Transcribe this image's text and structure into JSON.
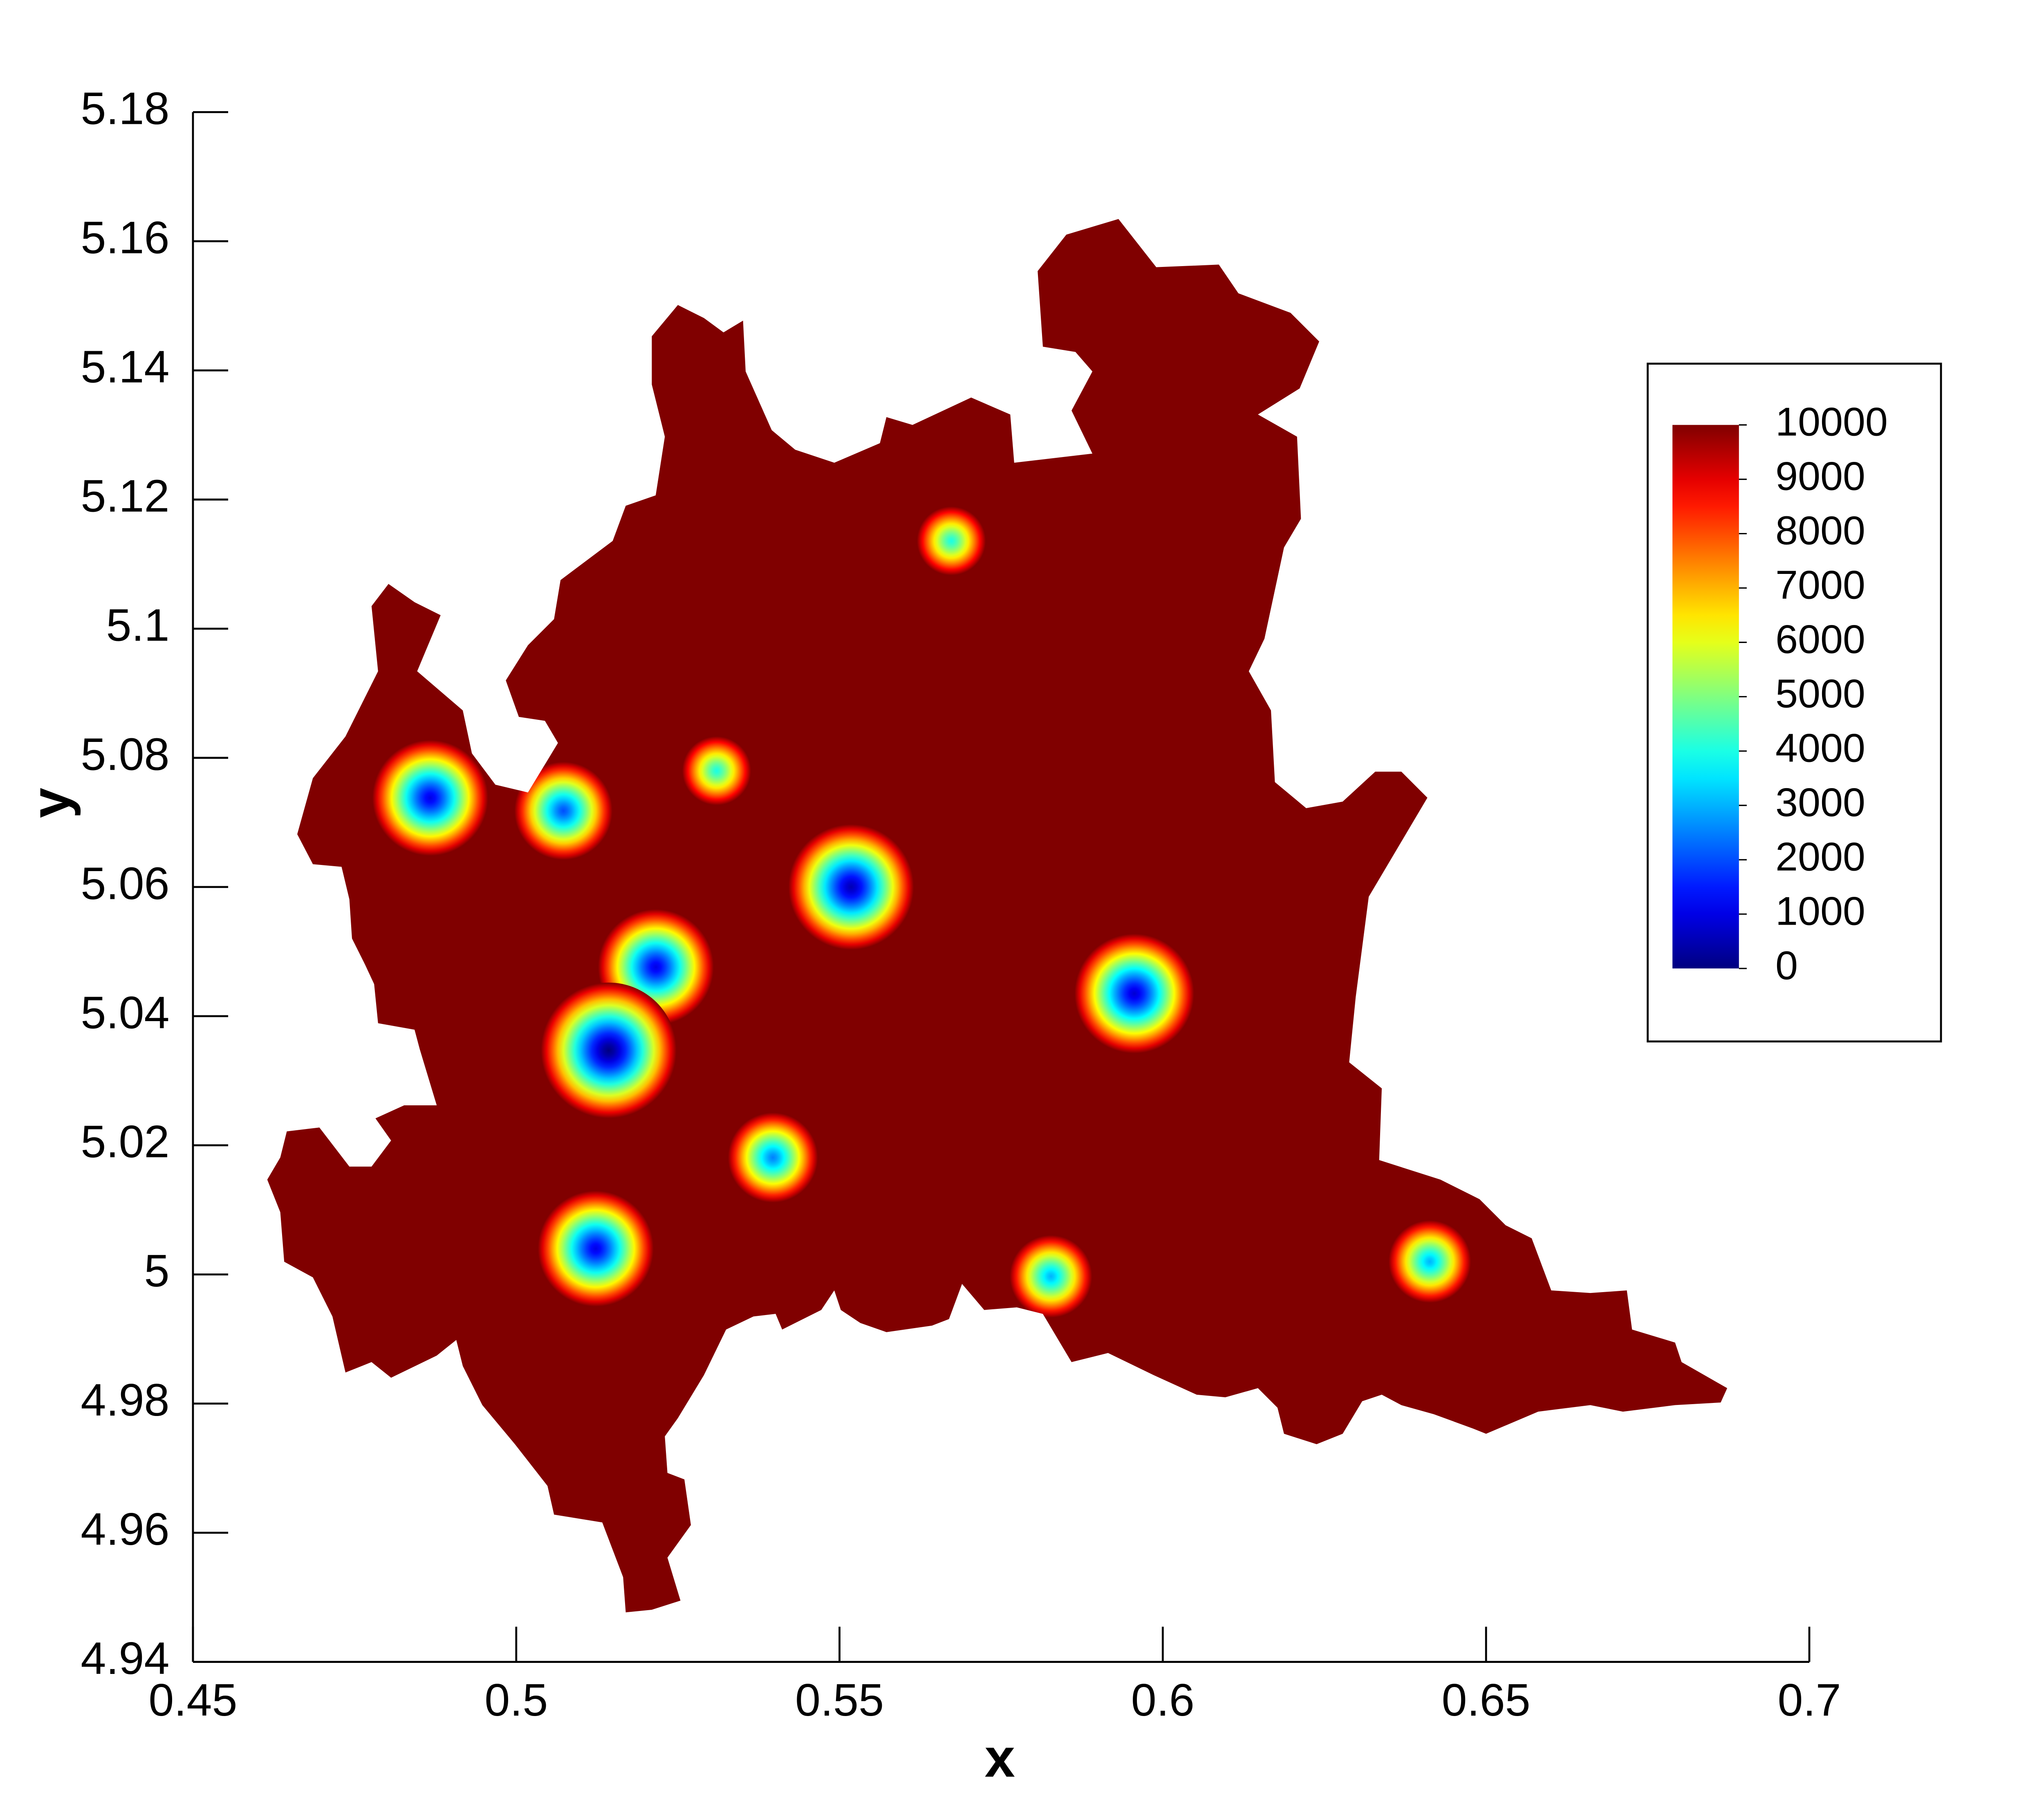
{
  "chart_data": {
    "type": "contour",
    "xlabel": "x",
    "ylabel": "y",
    "xlim": [
      0.45,
      0.7
    ],
    "xticks": [
      0.45,
      0.5,
      0.55,
      0.6,
      0.65,
      0.7
    ],
    "ylim": [
      4.94,
      5.18
    ],
    "yticks": [
      4.94,
      4.96,
      4.98,
      5,
      5.02,
      5.04,
      5.06,
      5.08,
      5.1,
      5.12,
      5.14,
      5.16,
      5.18
    ],
    "colormap": "jet",
    "clim": [
      0,
      10000
    ],
    "cticks": [
      0,
      1000,
      2000,
      3000,
      4000,
      5000,
      6000,
      7000,
      8000,
      9000,
      10000
    ],
    "x": [
      0.4867,
      0.5073,
      0.531,
      0.5518,
      0.5216,
      0.5143,
      0.5673,
      0.5956,
      0.5397,
      0.5123,
      0.5827,
      0.6413
    ],
    "y": [
      5.0738,
      5.0718,
      5.078,
      5.06,
      5.0476,
      5.0347,
      5.1136,
      5.0435,
      5.0181,
      5.004,
      4.9997,
      5.002
    ],
    "values": [
      1000,
      2000,
      4000,
      500,
      1000,
      0,
      4000,
      800,
      2500,
      1000,
      3000,
      3000
    ]
  }
}
